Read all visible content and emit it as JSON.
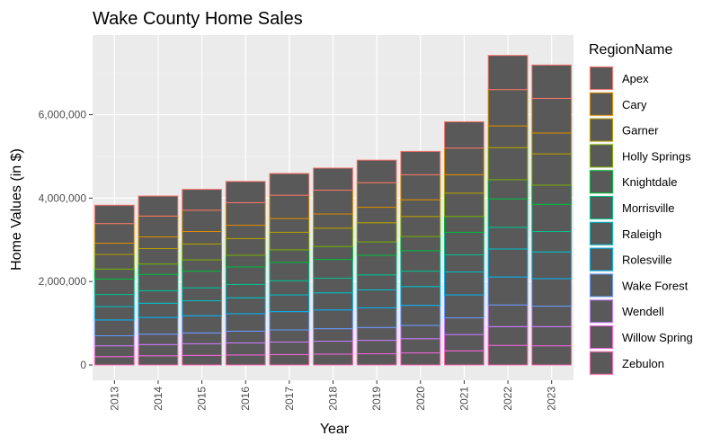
{
  "chart_data": {
    "type": "bar",
    "stacked": true,
    "title": "Wake County Home Sales",
    "xlabel": "Year",
    "ylabel": "Home Values (in $)",
    "categories": [
      "2013",
      "2014",
      "2015",
      "2016",
      "2017",
      "2018",
      "2019",
      "2020",
      "2021",
      "2022",
      "2023"
    ],
    "ylim": [
      0,
      7800000
    ],
    "yticks": [
      0,
      2000000,
      4000000,
      6000000
    ],
    "ytick_labels": [
      "0",
      "2,000,000",
      "4,000,000",
      "6,000,000"
    ],
    "legend_title": "RegionName",
    "legend_position": "right",
    "fill_color": "#595959",
    "panel_background": "#ebebeb",
    "series": [
      {
        "name": "Apex",
        "color": "#F8766D",
        "values": [
          440000,
          480000,
          500000,
          510000,
          520000,
          530000,
          540000,
          560000,
          630000,
          820000,
          800000
        ]
      },
      {
        "name": "Cary",
        "color": "#DE8C00",
        "values": [
          470000,
          500000,
          510000,
          540000,
          560000,
          570000,
          590000,
          600000,
          640000,
          870000,
          830000
        ]
      },
      {
        "name": "Garner",
        "color": "#B79F00",
        "values": [
          270000,
          280000,
          300000,
          320000,
          330000,
          340000,
          370000,
          400000,
          440000,
          520000,
          500000
        ]
      },
      {
        "name": "Holly Springs",
        "color": "#7CAE00",
        "values": [
          350000,
          370000,
          380000,
          400000,
          420000,
          440000,
          460000,
          480000,
          560000,
          770000,
          750000
        ]
      },
      {
        "name": "Knightdale",
        "color": "#00BA38",
        "values": [
          240000,
          250000,
          270000,
          280000,
          300000,
          310000,
          320000,
          340000,
          380000,
          460000,
          460000
        ]
      },
      {
        "name": "Morrisville",
        "color": "#00C08B",
        "values": [
          370000,
          390000,
          400000,
          420000,
          440000,
          450000,
          470000,
          490000,
          540000,
          680000,
          650000
        ]
      },
      {
        "name": "Raleigh",
        "color": "#00BFC4",
        "values": [
          290000,
          300000,
          310000,
          320000,
          340000,
          350000,
          360000,
          370000,
          410000,
          520000,
          490000
        ]
      },
      {
        "name": "Rolesville",
        "color": "#00B4F0",
        "values": [
          320000,
          340000,
          360000,
          380000,
          400000,
          410000,
          430000,
          450000,
          550000,
          670000,
          640000
        ]
      },
      {
        "name": "Wake Forest",
        "color": "#619CFF",
        "values": [
          380000,
          400000,
          410000,
          420000,
          440000,
          450000,
          470000,
          480000,
          550000,
          670000,
          660000
        ]
      },
      {
        "name": "Wendell",
        "color": "#C77CFF",
        "values": [
          240000,
          250000,
          260000,
          280000,
          290000,
          300000,
          310000,
          320000,
          400000,
          520000,
          490000
        ]
      },
      {
        "name": "Willow Spring",
        "color": "#F564E3",
        "values": [
          260000,
          270000,
          280000,
          290000,
          300000,
          310000,
          320000,
          340000,
          390000,
          450000,
          460000
        ]
      },
      {
        "name": "Zebulon",
        "color": "#FF64B0",
        "values": [
          200000,
          220000,
          230000,
          240000,
          250000,
          260000,
          270000,
          290000,
          340000,
          470000,
          460000
        ]
      }
    ]
  }
}
